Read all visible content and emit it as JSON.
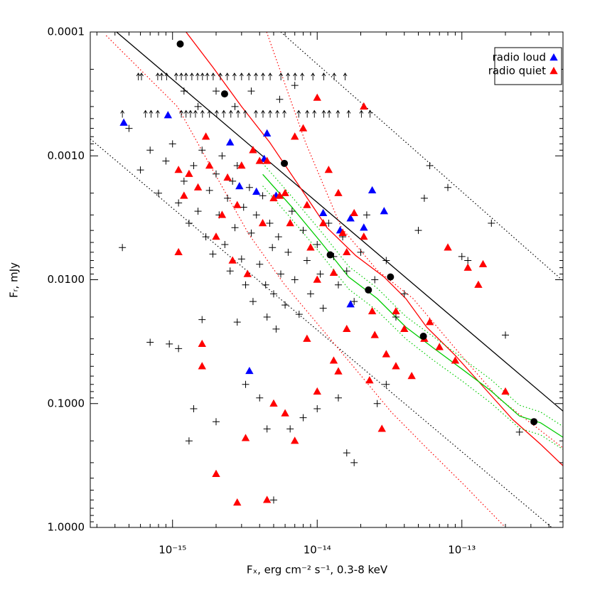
{
  "chart_data": {
    "type": "scatter",
    "xlabel": "Fₓ, erg cm⁻² s⁻¹, 0.3-8 keV",
    "ylabel": "Fᵣ, mJy",
    "xscale": "log",
    "yscale": "log",
    "xlim": [
      2.7e-16,
      5e-13
    ],
    "ylim": [
      1,
      0.0001
    ],
    "xticks": [
      {
        "value": 1e-15,
        "label": "10⁻¹⁵"
      },
      {
        "value": 1e-14,
        "label": "10⁻¹⁴"
      },
      {
        "value": 1e-13,
        "label": "10⁻¹³"
      }
    ],
    "yticks": [
      0.0001,
      {
        "value": 0.001,
        "label": "0.0010"
      },
      {
        "value": 0.01,
        "label": "0.0100"
      },
      {
        "value": 0.1,
        "label": "0.1000"
      },
      {
        "value": 1,
        "label": "1.0000"
      }
    ],
    "xminorticks": [
      3e-16,
      4e-16,
      5e-16,
      6e-16,
      7e-16,
      8e-16,
      9e-16,
      2e-15,
      3e-15,
      4e-15,
      5e-15,
      6e-15,
      7e-15,
      8e-15,
      9e-15,
      2e-14,
      3e-14,
      4e-14,
      5e-14,
      6e-14,
      7e-14,
      8e-14,
      9e-14,
      2e-13,
      3e-13,
      4e-13
    ],
    "yminorticks": [
      0.0002,
      0.0003,
      0.0004,
      0.0005,
      0.0006,
      0.0007,
      0.0008,
      0.0009,
      0.002,
      0.003,
      0.004,
      0.005,
      0.006,
      0.007,
      0.008,
      0.009,
      0.02,
      0.03,
      0.04,
      0.05,
      0.06,
      0.07,
      0.08,
      0.09,
      0.2,
      0.3,
      0.4,
      0.5,
      0.6,
      0.7,
      0.8,
      0.9
    ],
    "legend": "upper right",
    "series": [
      {
        "marker": "plus",
        "color": "#000000",
        "x": [
          5e-16,
          6e-16,
          7e-16,
          8e-16,
          9e-16,
          1e-15,
          1.1e-15,
          1.2e-15,
          1.3e-15,
          1.4e-15,
          1.5e-15,
          1.6e-15,
          1.7e-15,
          1.8e-15,
          1.9e-15,
          2e-15,
          2.1e-15,
          2.2e-15,
          2.3e-15,
          2.4e-15,
          2.5e-15,
          2.6e-15,
          2.7e-15,
          2.8e-15,
          3e-15,
          3.1e-15,
          3.2e-15,
          3.4e-15,
          3.5e-15,
          3.6e-15,
          3.8e-15,
          4e-15,
          4.2e-15,
          4.4e-15,
          4.5e-15,
          4.7e-15,
          4.9e-15,
          5e-15,
          5.2e-15,
          5.4e-15,
          5.6e-15,
          6e-15,
          6.3e-15,
          6.7e-15,
          7e-15,
          7.5e-15,
          8e-15,
          8.5e-15,
          9e-15,
          1e-14,
          1.05e-14,
          1.1e-14,
          1.2e-14,
          1.3e-14,
          1.4e-14,
          1.5e-14,
          1.6e-14,
          1.8e-14,
          2e-14,
          2.2e-14,
          2.5e-14,
          3e-14,
          3.5e-14,
          4e-14,
          5e-14,
          6e-14,
          8e-14,
          1e-13,
          2e-13,
          2.5e-13,
          4.5e-16,
          7e-16,
          9.5e-16,
          1.1e-15,
          1.4e-15,
          1.6e-15,
          2e-15,
          1.3e-15,
          2.8e-15,
          3.2e-15,
          4e-15,
          4.5e-15,
          5e-15,
          6.5e-15,
          8e-15,
          1e-14,
          1.4e-14,
          1.6e-14,
          1.8e-14,
          3e-14,
          2.6e-14,
          1.2e-15,
          1.5e-15,
          2e-15,
          2.7e-15,
          3.5e-15,
          5.5e-15,
          7e-15,
          1.6e-13,
          5.5e-14,
          1.1e-13
        ],
        "values": [
          0.0006,
          0.0013,
          0.0009,
          0.002,
          0.0011,
          0.0008,
          0.0024,
          0.0016,
          0.0035,
          0.0012,
          0.0028,
          0.0009,
          0.0045,
          0.0019,
          0.0062,
          0.0014,
          0.003,
          0.001,
          0.0052,
          0.0022,
          0.0085,
          0.0016,
          0.0038,
          0.0012,
          0.0068,
          0.0026,
          0.011,
          0.0018,
          0.0042,
          0.015,
          0.003,
          0.0075,
          0.0021,
          0.011,
          0.02,
          0.0035,
          0.0055,
          0.013,
          0.025,
          0.0045,
          0.009,
          0.016,
          0.006,
          0.0028,
          0.01,
          0.019,
          0.004,
          0.007,
          0.013,
          0.0052,
          0.009,
          0.017,
          0.0035,
          0.0065,
          0.011,
          0.0045,
          0.0085,
          0.015,
          0.006,
          0.003,
          0.01,
          0.007,
          0.02,
          0.013,
          0.004,
          0.0012,
          0.0018,
          0.0065,
          0.028,
          0.17,
          0.0055,
          0.032,
          0.033,
          0.036,
          0.11,
          0.021,
          0.14,
          0.2,
          0.022,
          0.07,
          0.09,
          0.16,
          0.6,
          0.16,
          0.13,
          0.11,
          0.09,
          0.25,
          0.3,
          0.07,
          0.1,
          0.0003,
          0.0004,
          0.0003,
          0.0004,
          0.0003,
          0.00035,
          0.00027,
          0.0035,
          0.0022,
          0.007
        ]
      },
      {
        "name": "radio loud",
        "marker": "triangle",
        "color": "#0000ff",
        "x": [
          4.6e-16,
          9.3e-16,
          2.5e-15,
          2.9e-15,
          4.5e-15,
          4.3e-15,
          3.8e-15,
          5.2e-15,
          1.1e-14,
          1.44e-14,
          1.7e-14,
          2.1e-14,
          2.4e-14,
          2.9e-14,
          1.7e-14,
          3.4e-15
        ],
        "values": [
          0.00054,
          0.00047,
          0.00078,
          0.00176,
          0.00066,
          0.00106,
          0.00195,
          0.0021,
          0.0029,
          0.004,
          0.0032,
          0.0038,
          0.0019,
          0.0028,
          0.0158,
          0.0546
        ]
      },
      {
        "name": "radio quiet",
        "marker": "triangle",
        "color": "#ff0000",
        "x": [
          1.1e-15,
          1.2e-15,
          1.3e-15,
          1.5e-15,
          1.7e-15,
          1.8e-15,
          2e-15,
          2.2e-15,
          2.4e-15,
          2.6e-15,
          2.8e-15,
          3e-15,
          3.3e-15,
          3.6e-15,
          4e-15,
          4.2e-15,
          4.5e-15,
          5e-15,
          5.5e-15,
          6e-15,
          6.5e-15,
          7e-15,
          8e-15,
          8.5e-15,
          9e-15,
          1e-14,
          1.1e-14,
          1.2e-14,
          1.3e-14,
          1.4e-14,
          1.5e-14,
          1.6e-14,
          1.8e-14,
          2.1e-14,
          2.4e-14,
          2.5e-14,
          3e-14,
          3.5e-14,
          4e-14,
          4.5e-14,
          5.5e-14,
          6e-14,
          7e-14,
          8e-14,
          9e-14,
          1.1e-13,
          1.3e-13,
          1.4e-13,
          2e-13,
          1.6e-15,
          1.6e-15,
          2e-15,
          2.8e-15,
          3.2e-15,
          4.5e-15,
          5e-15,
          6e-15,
          7e-15,
          8.5e-15,
          1e-14,
          1.3e-14,
          1.6e-14,
          2.8e-14,
          1.4e-14,
          2.3e-14,
          3.5e-14,
          1.1e-15,
          1e-14,
          2.1e-14
        ],
        "values": [
          0.0013,
          0.0021,
          0.0014,
          0.0018,
          0.0007,
          0.0012,
          0.0045,
          0.003,
          0.0015,
          0.007,
          0.0025,
          0.0012,
          0.009,
          0.0009,
          0.0011,
          0.0035,
          0.0011,
          0.0022,
          0.0021,
          0.002,
          0.0035,
          0.0007,
          0.0006,
          0.0025,
          0.0055,
          0.01,
          0.0035,
          0.0013,
          0.0088,
          0.002,
          0.0042,
          0.006,
          0.0029,
          0.0045,
          0.018,
          0.028,
          0.04,
          0.05,
          0.025,
          0.06,
          0.03,
          0.022,
          0.035,
          0.0055,
          0.045,
          0.008,
          0.011,
          0.0075,
          0.08,
          0.033,
          0.05,
          0.37,
          0.63,
          0.19,
          0.6,
          0.1,
          0.12,
          0.2,
          0.03,
          0.08,
          0.045,
          0.025,
          0.16,
          0.055,
          0.065,
          0.018,
          0.006,
          0.00034,
          0.0004
        ]
      },
      {
        "marker": "circle",
        "color": "#000000",
        "x": [
          1.13e-15,
          2.29e-15,
          5.93e-15,
          1.23e-14,
          2.26e-14,
          3.21e-14,
          5.42e-14,
          3.15e-13
        ],
        "values": [
          0.000125,
          0.000316,
          0.00115,
          0.0063,
          0.0121,
          0.0095,
          0.0286,
          0.14
        ]
      },
      {
        "marker": "arrow",
        "color": "#000000",
        "x": [
          5.8e-16,
          6.1e-16,
          7.9e-16,
          8.4e-16,
          9.1e-16,
          1.06e-15,
          1.15e-15,
          1.24e-15,
          1.36e-15,
          1.49e-15,
          1.61e-15,
          1.74e-15,
          1.91e-15,
          2.14e-15,
          2.39e-15,
          2.68e-15,
          3e-15,
          3.37e-15,
          3.77e-15,
          4.22e-15,
          4.73e-15,
          5.61e-15,
          6.28e-15,
          7.03e-15,
          7.88e-15,
          9.34e-15,
          1.11e-14,
          1.31e-14,
          1.56e-14,
          4.5e-16,
          6.5e-16,
          7.1e-16,
          7.9e-16,
          1.15e-15,
          1.24e-15,
          1.33e-15,
          1.44e-15,
          1.61e-15,
          1.8e-15,
          2.02e-15,
          2.26e-15,
          2.53e-15,
          2.84e-15,
          3.18e-15,
          3.77e-15,
          4.22e-15,
          4.73e-15,
          5.3e-15,
          5.93e-15,
          7.45e-15,
          8.53e-15,
          9.56e-15,
          1.11e-14,
          1.21e-14,
          1.39e-14,
          1.65e-14,
          2.02e-14,
          2.32e-14
        ],
        "values": [
          0.00023,
          0.00023,
          0.00023,
          0.00023,
          0.00023,
          0.00023,
          0.00023,
          0.00023,
          0.00023,
          0.00023,
          0.00023,
          0.00023,
          0.00023,
          0.00023,
          0.00023,
          0.00023,
          0.00023,
          0.00023,
          0.00023,
          0.00023,
          0.00023,
          0.00023,
          0.00023,
          0.00023,
          0.00023,
          0.00023,
          0.00023,
          0.00023,
          0.00023,
          0.00046,
          0.00046,
          0.00046,
          0.00046,
          0.00046,
          0.00046,
          0.00046,
          0.00046,
          0.00046,
          0.00046,
          0.00046,
          0.00046,
          0.00046,
          0.00046,
          0.00046,
          0.00046,
          0.00046,
          0.00046,
          0.00046,
          0.00046,
          0.00046,
          0.00046,
          0.00046,
          0.00046,
          0.00046,
          0.00046,
          0.00046,
          0.00046,
          0.00046
        ]
      }
    ],
    "lines": [
      {
        "color": "#000000",
        "dash": false,
        "x": [
          4.1e-16,
          5e-13
        ],
        "values": [
          0.0001,
          0.115
        ]
      },
      {
        "color": "#000000",
        "dash": true,
        "x": [
          5.6e-15,
          5e-13
        ],
        "values": [
          0.0001,
          0.0102
        ]
      },
      {
        "color": "#000000",
        "dash": true,
        "x": [
          2.7e-16,
          4.18e-13
        ],
        "values": [
          0.00073,
          1
        ]
      },
      {
        "color": "#ff0000",
        "dash": false,
        "x": [
          1.24e-15,
          1.91e-15,
          3e-15,
          4.7e-15,
          7.4e-15,
          1.17e-14,
          1.85e-14,
          2.9e-14,
          4.1e-14,
          5.7e-14,
          9e-14,
          1.42e-13,
          2.24e-13,
          3.5e-13,
          5e-13
        ],
        "values": [
          0.0001,
          0.000194,
          0.0004,
          0.00078,
          0.00171,
          0.0038,
          0.0064,
          0.0095,
          0.0142,
          0.0241,
          0.0408,
          0.074,
          0.134,
          0.213,
          0.317
        ]
      },
      {
        "color": "#ff0000",
        "dash": true,
        "x": [
          4.47e-15,
          8.3e-15,
          1.47e-14,
          2.6e-14,
          4.6e-14,
          9e-14,
          1.78e-13,
          5e-13
        ],
        "values": [
          0.0001,
          0.00078,
          0.0038,
          0.0084,
          0.0142,
          0.0358,
          0.09,
          0.228
        ]
      },
      {
        "color": "#ff0000",
        "dash": true,
        "x": [
          3.48e-16,
          1.08e-15,
          1.91e-15,
          3.37e-15,
          5.93e-15,
          1.05e-14,
          1.85e-14,
          3.25e-14,
          5.7e-14,
          1.01e-13,
          2e-13
        ],
        "values": [
          0.000107,
          0.0004,
          0.00132,
          0.0043,
          0.0109,
          0.0241,
          0.053,
          0.117,
          0.228,
          0.44,
          1
        ]
      },
      {
        "color": "#00cc00",
        "dash": false,
        "x": [
          4.2e-15,
          6.6e-15,
          1.05e-14,
          1.65e-14,
          2.6e-14,
          4.1e-14,
          6.4e-14,
          1.01e-13,
          1.59e-13,
          2.5e-13,
          3.5e-13,
          5e-13
        ],
        "values": [
          0.00141,
          0.00255,
          0.0049,
          0.0095,
          0.0142,
          0.0241,
          0.0358,
          0.053,
          0.079,
          0.126,
          0.143,
          0.187
        ]
      },
      {
        "color": "#00cc00",
        "dash": true,
        "x": [
          4.2e-15,
          6.6e-15,
          1.05e-14,
          1.65e-14,
          2.6e-14,
          4.1e-14,
          6.4e-14,
          1.01e-13,
          1.59e-13,
          2.5e-13,
          3.5e-13,
          5e-13
        ],
        "values": [
          0.00115,
          0.0021,
          0.004,
          0.0078,
          0.0117,
          0.0198,
          0.029,
          0.043,
          0.064,
          0.103,
          0.117,
          0.153
        ]
      },
      {
        "color": "#00cc00",
        "dash": true,
        "x": [
          4.2e-15,
          6.6e-15,
          1.05e-14,
          1.65e-14,
          2.6e-14,
          4.1e-14,
          6.4e-14,
          1.01e-13,
          1.59e-13,
          2.5e-13,
          3.5e-13,
          5e-13
        ],
        "values": [
          0.00175,
          0.0032,
          0.0061,
          0.0119,
          0.0178,
          0.03,
          0.045,
          0.066,
          0.099,
          0.158,
          0.179,
          0.234
        ]
      }
    ]
  }
}
